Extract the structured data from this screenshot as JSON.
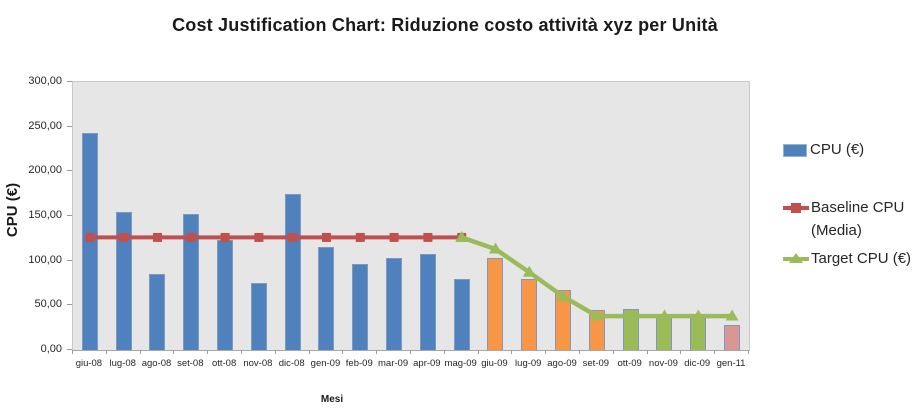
{
  "title": "Cost Justification Chart: Riduzione costo attività xyz per Unità",
  "y_axis": {
    "title": "CPU (€)",
    "ticks": [
      {
        "label": "300,00",
        "value": 300
      },
      {
        "label": "250,00",
        "value": 250
      },
      {
        "label": "200,00",
        "value": 200
      },
      {
        "label": "150,00",
        "value": 150
      },
      {
        "label": "100,00",
        "value": 100
      },
      {
        "label": "50,00",
        "value": 50
      },
      {
        "label": "0,00",
        "value": 0
      }
    ]
  },
  "x_axis": {
    "title": "Mesi"
  },
  "legend": {
    "items": [
      {
        "label": "CPU (€)",
        "color": "#4F81BD",
        "marker": "bar"
      },
      {
        "label": "Baseline CPU (Media)",
        "color": "#C0504D",
        "marker": "line-square"
      },
      {
        "label": "Target  CPU (€)",
        "color": "#9BBB59",
        "marker": "line-triangle"
      }
    ]
  },
  "colors": {
    "plot_background": "#E6E6E6",
    "bar_actual_blue": "#4F81BD",
    "bar_transition_orange": "#F79646",
    "bar_achieved_green": "#9BBB59",
    "bar_final_pink": "#D99694",
    "baseline_red": "#C0504D",
    "target_green": "#9BBB59"
  },
  "chart_data": {
    "type": "bar",
    "title": "Cost Justification Chart: Riduzione costo attività xyz per Unità",
    "xlabel": "Mesi",
    "ylabel": "CPU (€)",
    "ylim": [
      0,
      300
    ],
    "grid": false,
    "legend_position": "right",
    "categories": [
      "giu-08",
      "lug-08",
      "ago-08",
      "set-08",
      "ott-08",
      "nov-08",
      "dic-08",
      "gen-09",
      "feb-09",
      "mar-09",
      "apr-09",
      "mag-09",
      "giu-09",
      "lug-09",
      "ago-09",
      "set-09",
      "ott-09",
      "nov-09",
      "dic-09",
      "gen-11"
    ],
    "series": [
      {
        "name": "CPU (€)",
        "type": "bar",
        "values": [
          243,
          155,
          85,
          152,
          123,
          75,
          175,
          115,
          96,
          103,
          108,
          80,
          103,
          80,
          67,
          45,
          46,
          40,
          38,
          28
        ],
        "colors": [
          "#4F81BD",
          "#4F81BD",
          "#4F81BD",
          "#4F81BD",
          "#4F81BD",
          "#4F81BD",
          "#4F81BD",
          "#4F81BD",
          "#4F81BD",
          "#4F81BD",
          "#4F81BD",
          "#4F81BD",
          "#F79646",
          "#F79646",
          "#F79646",
          "#F79646",
          "#9BBB59",
          "#9BBB59",
          "#9BBB59",
          "#D99694"
        ]
      },
      {
        "name": "Baseline CPU (Media)",
        "type": "line",
        "marker": "square",
        "color": "#C0504D",
        "stroke_width": 4,
        "values": [
          126,
          126,
          126,
          126,
          126,
          126,
          126,
          126,
          126,
          126,
          126,
          126,
          null,
          null,
          null,
          null,
          null,
          null,
          null,
          null
        ]
      },
      {
        "name": "Target CPU (€)",
        "type": "line",
        "marker": "triangle",
        "color": "#9BBB59",
        "stroke_width": 4.5,
        "values": [
          null,
          null,
          null,
          null,
          null,
          null,
          null,
          null,
          null,
          null,
          null,
          126,
          113,
          87,
          60,
          38,
          38,
          38,
          38,
          38
        ]
      }
    ]
  }
}
